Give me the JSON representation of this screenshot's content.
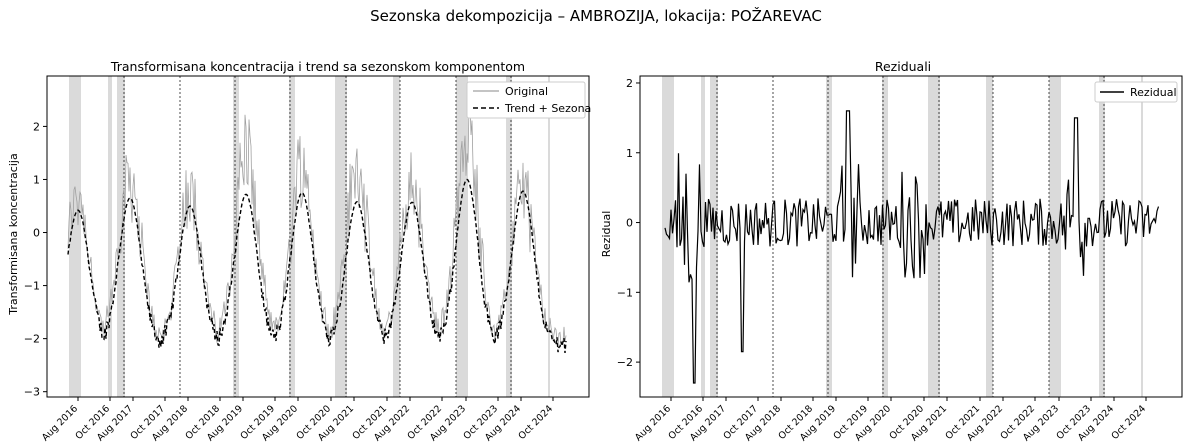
{
  "suptitle": "Sezonska dekompozicija – AMBROZIJA, lokacija: POŽAREVAC",
  "x_tick_labels": [
    "Aug 2016",
    "Oct 2016",
    "Aug 2017",
    "Oct 2017",
    "Aug 2018",
    "Oct 2018",
    "Aug 2019",
    "Oct 2019",
    "Aug 2020",
    "Oct 2020",
    "Aug 2021",
    "Oct 2021",
    "Aug 2022",
    "Oct 2022",
    "Aug 2023",
    "Oct 2023",
    "Aug 2024",
    "Oct 2024"
  ],
  "colors": {
    "original": "#a0a0a0",
    "trend": "#000000",
    "residual": "#000000",
    "band": "#d3d3d3"
  },
  "chart_data": [
    {
      "type": "line",
      "title": "Transformisana koncentracija i trend sa sezonskom komponentom",
      "xlabel": "",
      "ylabel": "Transformisana koncentracija",
      "ylim": [
        -3.1,
        2.95
      ],
      "y_ticks": [
        -3,
        -2,
        -1,
        0,
        1,
        2
      ],
      "legend": "top-right",
      "grid": false,
      "series": [
        {
          "name": "Original",
          "style": "solid-gray",
          "peaks": [
            0.95,
            1.35,
            1.05,
            1.85,
            1.55,
            1.4,
            1.15,
            2.3,
            1.1
          ],
          "baseline": -2.0
        },
        {
          "name": "Trend + Sezona",
          "style": "dashed-black",
          "peaks": [
            0.42,
            0.65,
            0.5,
            0.72,
            0.75,
            0.58,
            0.57,
            1.0,
            0.78
          ],
          "baseline": -2.1
        }
      ]
    },
    {
      "type": "line",
      "title": "Reziduali",
      "xlabel": "",
      "ylabel": "Rezidual",
      "ylim": [
        -2.5,
        2.1
      ],
      "y_ticks": [
        -2,
        -1,
        0,
        1,
        2
      ],
      "legend": "top-right",
      "grid": false,
      "series": [
        {
          "name": "Rezidual",
          "style": "solid-black",
          "range": [
            -2.3,
            1.6
          ]
        }
      ]
    }
  ]
}
